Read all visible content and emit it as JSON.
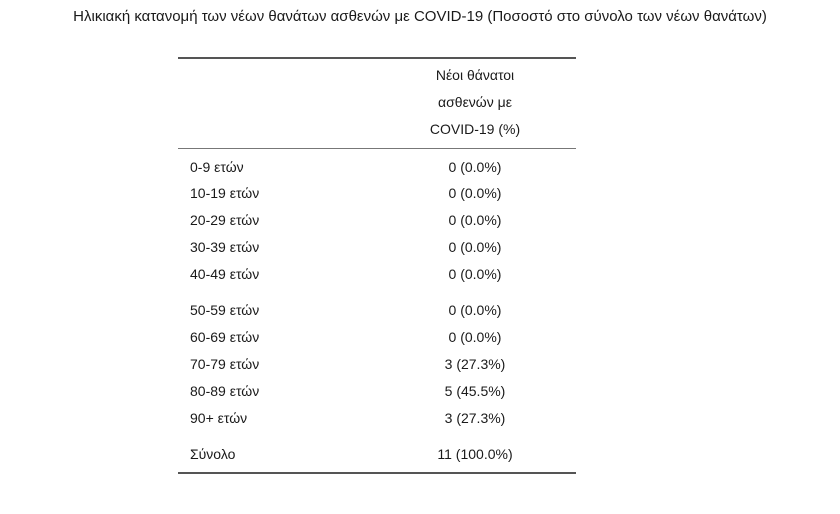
{
  "title": "Ηλικιακή κατανομή των νέων θανάτων ασθενών με COVID-19 (Ποσοστό στο σύνολο των νέων θανάτων)",
  "table": {
    "header": "Νέοι θάνατοι ασθενών με COVID-19 (%)",
    "rows": [
      [
        "0-9 ετών",
        "0 (0.0%)"
      ],
      [
        "10-19 ετών",
        "0 (0.0%)"
      ],
      [
        "20-29 ετών",
        "0 (0.0%)"
      ],
      [
        "30-39 ετών",
        "0 (0.0%)"
      ],
      [
        "40-49 ετών",
        "0 (0.0%)"
      ],
      [
        "50-59 ετών",
        "0 (0.0%)"
      ],
      [
        "60-69 ετών",
        "0 (0.0%)"
      ],
      [
        "70-79 ετών",
        "3 (27.3%)"
      ],
      [
        "80-89 ετών",
        "5 (45.5%)"
      ],
      [
        "90+ ετών",
        "3 (27.3%)"
      ],
      [
        "Σύνολο",
        "11 (100.0%)"
      ]
    ]
  }
}
